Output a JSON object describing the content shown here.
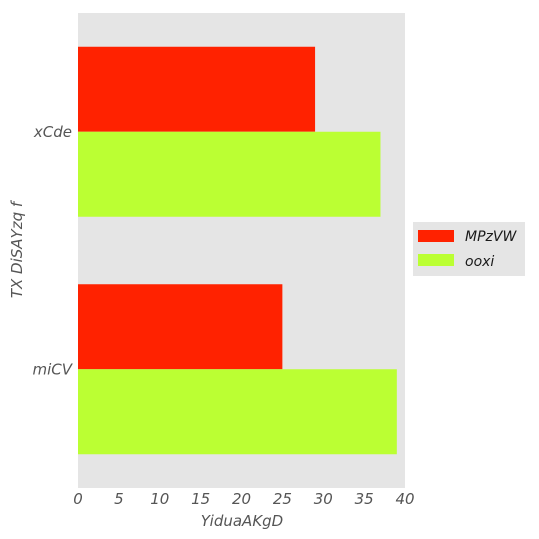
{
  "chart_data": {
    "type": "bar",
    "orientation": "horizontal",
    "categories": [
      "xCde",
      "miCV"
    ],
    "series": [
      {
        "name": "MPzVW",
        "values": [
          29,
          25
        ],
        "color": "#ff2200"
      },
      {
        "name": "ooxi",
        "values": [
          37,
          39
        ],
        "color": "#bbff33"
      }
    ],
    "xlabel": "YiduaAKgD",
    "ylabel": "TX DiSAYzq f",
    "xlim": [
      0,
      40
    ],
    "xticks": [
      "0",
      "5",
      "10",
      "15",
      "20",
      "25",
      "30",
      "35",
      "40"
    ],
    "grid": false,
    "background": "#e5e5e5",
    "legend_position": "right"
  }
}
